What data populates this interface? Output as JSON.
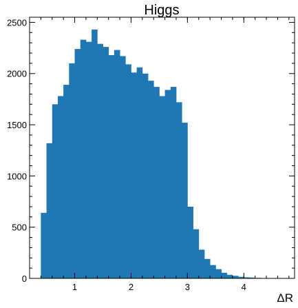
{
  "chart_data": {
    "type": "bar",
    "title": "Higgs",
    "xlabel": "ΔR",
    "ylabel": "",
    "xlim": [
      0.2,
      4.9
    ],
    "ylim": [
      0,
      2550
    ],
    "bin_width": 0.1,
    "bin_edges_start": 0.4,
    "values": [
      640,
      1320,
      1700,
      1780,
      1890,
      2100,
      2240,
      2330,
      2310,
      2430,
      2290,
      2260,
      2180,
      2230,
      2170,
      2090,
      2010,
      2060,
      2000,
      1930,
      1870,
      1780,
      1840,
      1870,
      1720,
      1520,
      700,
      480,
      280,
      190,
      130,
      90,
      55,
      35,
      25,
      15,
      10,
      8,
      5,
      3,
      2,
      1
    ],
    "color": "#1f77b4",
    "x_ticks": [
      1,
      2,
      3,
      4
    ],
    "x_tick_labels": [
      "1",
      "2",
      "3",
      "4"
    ],
    "y_ticks": [
      0,
      500,
      1000,
      1500,
      2000,
      2500
    ],
    "y_tick_labels": [
      "0",
      "500",
      "1000",
      "1500",
      "2000",
      "2500"
    ],
    "grid": false,
    "legend": "none"
  }
}
